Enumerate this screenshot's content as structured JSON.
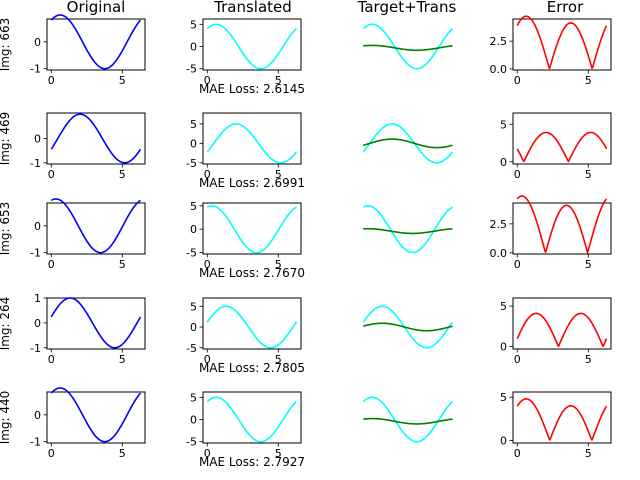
{
  "columns": [
    "Original",
    "Translated",
    "Target+Trans",
    "Error"
  ],
  "colors": {
    "original": "#0000ff",
    "translated": "#00ffff",
    "target": "#008000",
    "error": "#ff0000",
    "axes": "#000000",
    "background": "#ffffff"
  },
  "chart_data": {
    "type": "line",
    "layout": "5x4 grid of line subplots",
    "grid": false,
    "legend": "none",
    "rows": [
      {
        "row_label": "Img: 663",
        "mae_label": "MAE Loss: 2.6145",
        "original": {
          "phase": 2.2,
          "xticks": [
            "0",
            "5"
          ],
          "yticks": [
            "-1",
            "0"
          ],
          "ylim": [
            -1.05,
            0.85
          ]
        },
        "translated": {
          "amp": 5.0,
          "yticks": [
            "-5",
            "0",
            "5"
          ],
          "ylim": [
            -5.3,
            6.2
          ]
        },
        "target": {
          "amp": 0.55,
          "phase": 2.2,
          "offset": -0.3,
          "ylim": [
            -5.3,
            6.2
          ]
        },
        "error": {
          "yticks": [
            "0.0",
            "2.5"
          ],
          "ylim": [
            -0.1,
            4.5
          ]
        }
      },
      {
        "row_label": "Img: 469",
        "mae_label": "MAE Loss: 2.6991",
        "original": {
          "phase": 3.6,
          "xticks": [
            "0",
            "5"
          ],
          "yticks": [
            "-1",
            "0"
          ],
          "ylim": [
            -1.05,
            1.05
          ]
        },
        "translated": {
          "amp": 5.0,
          "yticks": [
            "-5",
            "0",
            "5"
          ],
          "ylim": [
            -5.3,
            7.8
          ]
        },
        "target": {
          "amp": 1.1,
          "phase": 3.6,
          "offset": 0.0,
          "ylim": [
            -5.3,
            7.8
          ]
        },
        "error": {
          "yticks": [
            "0",
            "5"
          ],
          "ylim": [
            -0.3,
            6.5
          ]
        }
      },
      {
        "row_label": "Img: 653",
        "mae_label": "MAE Loss: 2.7670",
        "original": {
          "phase": 1.9,
          "xticks": [
            "0",
            "5"
          ],
          "yticks": [
            "-1",
            "0"
          ],
          "ylim": [
            -1.05,
            0.85
          ]
        },
        "translated": {
          "amp": 5.0,
          "yticks": [
            "-5",
            "0",
            "5"
          ],
          "ylim": [
            -5.3,
            5.6
          ]
        },
        "target": {
          "amp": 0.5,
          "phase": 1.9,
          "offset": -0.4,
          "ylim": [
            -5.3,
            5.6
          ]
        },
        "error": {
          "yticks": [
            "0.0",
            "2.5"
          ],
          "ylim": [
            -0.1,
            4.3
          ]
        }
      },
      {
        "row_label": "Img: 264",
        "mae_label": "MAE Loss: 2.7805",
        "original": {
          "phase": 2.9,
          "xticks": [
            "0",
            "5"
          ],
          "yticks": [
            "-1",
            "0",
            "1"
          ],
          "ylim": [
            -1.05,
            1.0
          ]
        },
        "translated": {
          "amp": 5.0,
          "yticks": [
            "-5",
            "0",
            "5"
          ],
          "ylim": [
            -5.3,
            7.0
          ]
        },
        "target": {
          "amp": 0.9,
          "phase": 2.9,
          "offset": 0.0,
          "ylim": [
            -5.3,
            7.0
          ]
        },
        "error": {
          "yticks": [
            "0",
            "5"
          ],
          "ylim": [
            -0.3,
            6.0
          ]
        }
      },
      {
        "row_label": "Img: 440",
        "mae_label": "MAE Loss: 2.7927",
        "original": {
          "phase": 2.2,
          "xticks": [
            "0",
            "5"
          ],
          "yticks": [
            "-1",
            "0"
          ],
          "ylim": [
            -1.05,
            0.85
          ]
        },
        "translated": {
          "amp": 5.0,
          "yticks": [
            "-5",
            "0",
            "5"
          ],
          "ylim": [
            -5.3,
            6.2
          ]
        },
        "target": {
          "amp": 0.6,
          "phase": 2.2,
          "offset": -0.4,
          "ylim": [
            -5.3,
            6.2
          ]
        },
        "error": {
          "yticks": [
            "0",
            "5"
          ],
          "ylim": [
            -0.3,
            5.6
          ]
        }
      }
    ]
  }
}
